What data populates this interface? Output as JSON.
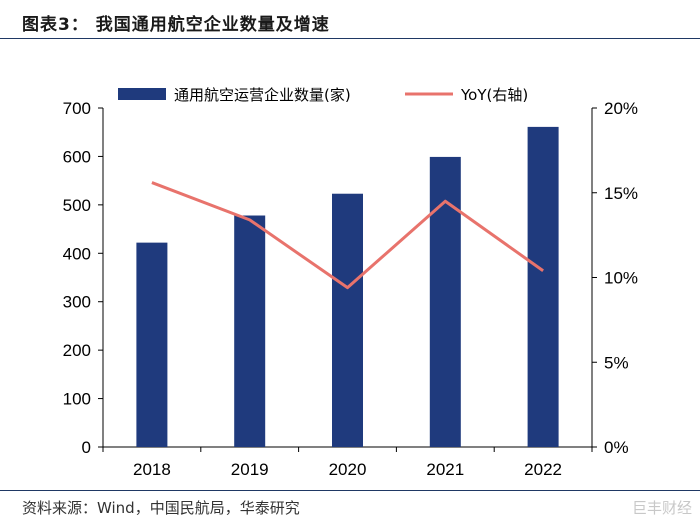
{
  "header": {
    "title": "图表3：  我国通用航空企业数量及增速"
  },
  "source": "资料来源：Wind，中国民航局，华泰研究",
  "watermark": "巨丰财经",
  "colors": {
    "bar": "#1f3a7d",
    "line": "#e8736c",
    "rule": "#1f3864"
  },
  "chart_data": {
    "type": "bar",
    "title": "",
    "categories": [
      "2018",
      "2019",
      "2020",
      "2021",
      "2022"
    ],
    "series": [
      {
        "name": "通用航空运营企业数量(家)",
        "type": "bar",
        "axis": "left",
        "values": [
          422,
          478,
          523,
          599,
          661
        ]
      },
      {
        "name": "YoY(右轴)",
        "type": "line",
        "axis": "right",
        "values": [
          0.156,
          0.134,
          0.094,
          0.145,
          0.104
        ]
      }
    ],
    "ylim": [
      0,
      700
    ],
    "y2lim": [
      0,
      0.2
    ],
    "yticks": [
      "0",
      "100",
      "200",
      "300",
      "400",
      "500",
      "600",
      "700"
    ],
    "y2ticks": [
      "0%",
      "5%",
      "10%",
      "15%",
      "20%"
    ],
    "legend": "top",
    "grid": false
  }
}
